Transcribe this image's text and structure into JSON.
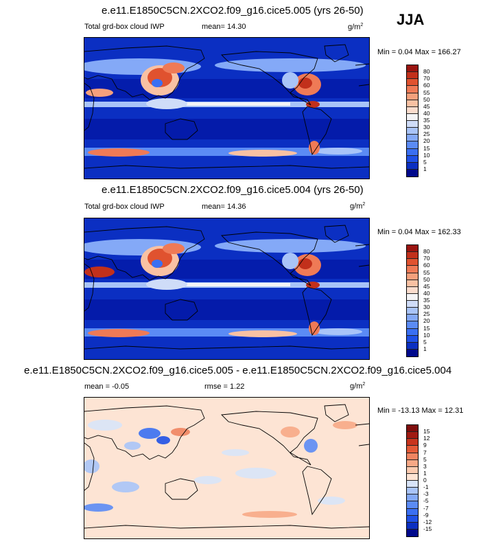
{
  "season": "JJA",
  "panels": [
    {
      "title": "e.e11.E1850C5CN.2XCO2.f09_g16.cice5.005 (yrs 26-50)",
      "variable": "Total grd-box cloud IWP",
      "mean_label": "mean=",
      "mean": "14.30",
      "units_base": "g/m",
      "units_exp": "2",
      "minmax": "Min =  0.04 Max = 166.27"
    },
    {
      "title": "e.e11.E1850C5CN.2XCO2.f09_g16.cice5.004 (yrs 26-50)",
      "variable": "Total grd-box cloud IWP",
      "mean_label": "mean=",
      "mean": "14.36",
      "units_base": "g/m",
      "units_exp": "2",
      "minmax": "Min =  0.04 Max = 162.33"
    },
    {
      "title": "e.e11.E1850C5CN.2XCO2.f09_g16.cice5.005 - e.e11.E1850C5CN.2XCO2.f09_g16.cice5.004",
      "mean_label": "mean =",
      "mean": "-0.05",
      "rmse_label": "rmse =",
      "rmse": "1.22",
      "units_base": "g/m",
      "units_exp": "2",
      "minmax": "Min = -13.13 Max =  12.31"
    }
  ],
  "chart_data": [
    {
      "type": "heatmap",
      "title": "e.e11.E1850C5CN.2XCO2.f09_g16.cice5.005 (yrs 26-50)",
      "variable": "Total grd-box cloud IWP",
      "units": "g/m^2",
      "mean": 14.3,
      "min": 0.04,
      "max": 166.27,
      "colorbar_levels": [
        1,
        5,
        10,
        15,
        20,
        25,
        30,
        35,
        40,
        45,
        50,
        55,
        60,
        70,
        80
      ],
      "colorbar_colors": [
        "#000a8c",
        "#0b2fc2",
        "#1f50e6",
        "#3a6ff2",
        "#5b8bf5",
        "#84a9f7",
        "#a9c4f8",
        "#cfdcf8",
        "#f4f4f6",
        "#fbdccd",
        "#f9c1a3",
        "#f5a07c",
        "#ef7a56",
        "#e0522f",
        "#c2301b",
        "#9a1410"
      ]
    },
    {
      "type": "heatmap",
      "title": "e.e11.E1850C5CN.2XCO2.f09_g16.cice5.004 (yrs 26-50)",
      "variable": "Total grd-box cloud IWP",
      "units": "g/m^2",
      "mean": 14.36,
      "min": 0.04,
      "max": 162.33,
      "colorbar_levels": [
        1,
        5,
        10,
        15,
        20,
        25,
        30,
        35,
        40,
        45,
        50,
        55,
        60,
        70,
        80
      ],
      "colorbar_colors": [
        "#000a8c",
        "#0b2fc2",
        "#1f50e6",
        "#3a6ff2",
        "#5b8bf5",
        "#84a9f7",
        "#a9c4f8",
        "#cfdcf8",
        "#f4f4f6",
        "#fbdccd",
        "#f9c1a3",
        "#f5a07c",
        "#ef7a56",
        "#e0522f",
        "#c2301b",
        "#9a1410"
      ]
    },
    {
      "type": "heatmap",
      "title": "e.e11.E1850C5CN.2XCO2.f09_g16.cice5.005 - e.e11.E1850C5CN.2XCO2.f09_g16.cice5.004",
      "units": "g/m^2",
      "mean": -0.05,
      "rmse": 1.22,
      "min": -13.13,
      "max": 12.31,
      "colorbar_levels": [
        -15,
        -12,
        -9,
        -7,
        -5,
        -3,
        -1,
        0,
        1,
        3,
        5,
        7,
        9,
        12,
        15
      ],
      "colorbar_colors": [
        "#000a8c",
        "#0b2fc2",
        "#1f50e6",
        "#3a6ff2",
        "#5b8bf5",
        "#84a9f7",
        "#a9c4f8",
        "#d8e4f8",
        "#fde4d4",
        "#fbcbb0",
        "#f7a886",
        "#f08461",
        "#e45a37",
        "#c8341d",
        "#a01a12",
        "#7f0d0c"
      ]
    }
  ]
}
